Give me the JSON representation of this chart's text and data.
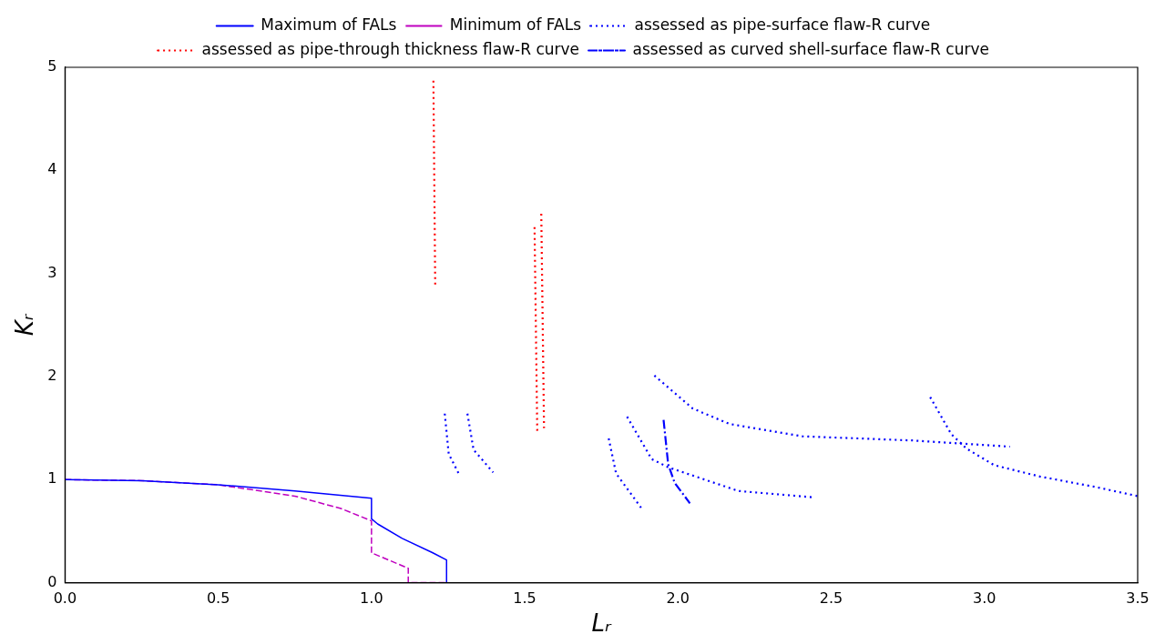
{
  "chart_data": {
    "type": "line",
    "xlabel": "Lᵣ",
    "ylabel": "Kᵣ",
    "xlim": [
      0,
      3.5
    ],
    "ylim": [
      0,
      5
    ],
    "xticks": [
      {
        "value": 0,
        "label": "0.0"
      },
      {
        "value": 0.5,
        "label": "0.5"
      },
      {
        "value": 1,
        "label": "1.0"
      },
      {
        "value": 1.5,
        "label": "1.5"
      },
      {
        "value": 2,
        "label": "2.0"
      },
      {
        "value": 2.5,
        "label": "2.5"
      },
      {
        "value": 3,
        "label": "3.0"
      },
      {
        "value": 3.5,
        "label": "3.5"
      }
    ],
    "yticks": [
      0,
      1,
      2,
      3,
      4,
      5
    ],
    "grid": false,
    "legend": "top",
    "marker": "none",
    "series": [
      {
        "name": "Maximum of FALs",
        "color": "#0000ff",
        "line_style": "solid",
        "x": [
          0,
          0.25,
          0.5,
          0.75,
          1.0,
          1.0,
          1.02,
          1.1,
          1.2,
          1.245,
          1.245
        ],
        "values": [
          1,
          0.99,
          0.95,
          0.89,
          0.82,
          0.62,
          0.57,
          0.43,
          0.29,
          0.22,
          0
        ]
      },
      {
        "name": "Minimum of FALs",
        "color": "#bf00bf",
        "line_style": "dashed",
        "x": [
          0,
          0.25,
          0.5,
          0.75,
          0.9,
          1.0,
          1.0,
          1.12,
          1.12,
          1.245
        ],
        "values": [
          1,
          0.99,
          0.95,
          0.84,
          0.72,
          0.6,
          0.29,
          0.14,
          0,
          0
        ]
      },
      {
        "name": "assessed as pipe-surface flaw-R curve",
        "color": "#0000ff",
        "line_style": "dotted",
        "x": [
          1.239,
          1.252,
          1.286
        ],
        "values": [
          1.64,
          1.25,
          1.05
        ]
      },
      {
        "name": "assessed as pipe-through thickness flaw-R curve",
        "color": "#ff0000",
        "line_style": "dotted",
        "x": [
          1.202,
          1.208
        ],
        "values": [
          4.87,
          2.86
        ]
      },
      {
        "name": "assessed as curved shell-surface flaw-R curve",
        "color": "#0000ff",
        "line_style": "dashdot",
        "x": [
          1.953,
          1.968,
          1.989,
          2.039
        ],
        "values": [
          1.58,
          1.15,
          0.97,
          0.77
        ]
      },
      {
        "color": "#0000ff",
        "line_style": "dotted",
        "x": [
          1.313,
          1.333,
          1.397
        ],
        "values": [
          1.64,
          1.29,
          1.07
        ]
      },
      {
        "color": "#0000ff",
        "line_style": "dotted",
        "x": [
          1.774,
          1.798,
          1.884
        ],
        "values": [
          1.4,
          1.06,
          0.71
        ]
      },
      {
        "color": "#0000ff",
        "line_style": "dotted",
        "x": [
          1.834,
          1.914,
          1.968,
          2.197,
          2.436
        ],
        "values": [
          1.61,
          1.2,
          1.12,
          0.89,
          0.83
        ]
      },
      {
        "color": "#0000ff",
        "line_style": "dotted",
        "x": [
          1.923,
          2.048,
          2.168,
          2.406,
          2.764,
          3.083
        ],
        "values": [
          2.01,
          1.69,
          1.54,
          1.42,
          1.38,
          1.32
        ]
      },
      {
        "color": "#0000ff",
        "line_style": "dotted",
        "x": [
          2.823,
          2.892,
          2.942,
          3.032,
          3.181,
          3.36,
          3.5
        ],
        "values": [
          1.8,
          1.44,
          1.3,
          1.14,
          1.03,
          0.93,
          0.84
        ]
      },
      {
        "color": "#ff0000",
        "line_style": "dotted",
        "x": [
          1.532,
          1.541
        ],
        "values": [
          3.45,
          1.45
        ]
      },
      {
        "color": "#ff0000",
        "line_style": "dotted",
        "x": [
          1.554,
          1.563
        ],
        "values": [
          3.58,
          1.5
        ]
      }
    ]
  }
}
